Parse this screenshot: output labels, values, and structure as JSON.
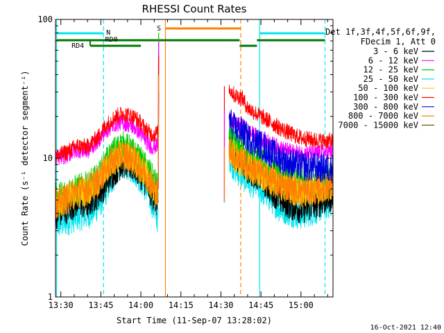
{
  "chart_data": {
    "type": "line",
    "title": "RHESSI Count Rates",
    "xlabel": "Start Time (11-Sep-07 13:28:02)",
    "ylabel": "Count Rate (s⁻¹ detector segment⁻¹)",
    "y_scale": "log",
    "ylim": [
      1,
      100
    ],
    "y_ticks": [
      "1",
      "10",
      "100"
    ],
    "x_range_minutes_of_day": [
      808,
      912
    ],
    "x_ticks": [
      "13:30",
      "13:45",
      "14:00",
      "14:15",
      "14:30",
      "14:45",
      "15:00"
    ],
    "x_tick_values_minutes": [
      810,
      825,
      840,
      855,
      870,
      885,
      900
    ],
    "legend_header": [
      "Det 1f,3f,4f,5f,6f,9f,",
      "FDecim 1, Att 0"
    ],
    "legend_position": "right",
    "timestamp": "16-Oct-2021 12:40",
    "series": [
      {
        "name": "3 - 6 keV",
        "color": "#000000",
        "anchors_x": [
          808,
          812,
          816,
          820,
          824,
          826,
          830,
          833,
          836,
          838,
          840,
          842,
          844,
          845.5,
          846.5,
          871,
          873,
          875,
          878,
          880,
          884,
          888,
          892,
          896,
          900,
          905,
          908,
          912
        ],
        "anchors_y": [
          3.9,
          4.3,
          4.8,
          4.6,
          5.6,
          6.2,
          8.0,
          9.2,
          8.8,
          8.5,
          7.6,
          6.6,
          5.6,
          5.0,
          4.3,
          null,
          13.0,
          10.5,
          9.6,
          8.2,
          7.5,
          6.2,
          5.1,
          4.6,
          4.3,
          4.6,
          4.9,
          5.3
        ]
      },
      {
        "name": "6 - 12 keV",
        "color": "#ff00ff",
        "anchors_x": [
          808,
          812,
          816,
          820,
          824,
          826,
          830,
          833,
          836,
          838,
          840,
          842,
          844,
          845.5,
          846.5,
          871,
          873,
          875,
          878,
          880,
          884,
          888,
          892,
          896,
          900,
          905,
          908,
          912
        ],
        "anchors_y": [
          10.0,
          10.4,
          11.5,
          11.2,
          13.4,
          15.0,
          17.6,
          18.2,
          17.2,
          16.4,
          15.0,
          13.2,
          12.0,
          12.2,
          12.5,
          null,
          20.0,
          17.5,
          17.0,
          15.5,
          14.2,
          13.0,
          11.8,
          11.2,
          10.8,
          10.8,
          11.0,
          11.2
        ]
      },
      {
        "name": "12 - 25 keV",
        "color": "#00cc00",
        "anchors_x": [
          808,
          812,
          816,
          820,
          824,
          826,
          830,
          833,
          836,
          838,
          840,
          842,
          844,
          845.5,
          846.5,
          871,
          873,
          875,
          878,
          880,
          884,
          888,
          892,
          896,
          900,
          905,
          908,
          912
        ],
        "anchors_y": [
          5.2,
          5.6,
          6.0,
          6.3,
          7.2,
          8.6,
          11.2,
          12.4,
          11.5,
          10.4,
          9.4,
          8.5,
          7.3,
          6.5,
          6.0,
          null,
          14.0,
          12.2,
          11.2,
          10.5,
          9.5,
          8.4,
          7.7,
          7.1,
          6.6,
          6.6,
          6.8,
          7.1
        ]
      },
      {
        "name": "25 - 50 keV",
        "color": "#00e5ee",
        "anchors_x": [
          808,
          812,
          816,
          820,
          824,
          826,
          830,
          833,
          836,
          838,
          840,
          842,
          844,
          845.5,
          846.5,
          871,
          873,
          875,
          878,
          880,
          884,
          888,
          892,
          896,
          900,
          905,
          908,
          912
        ],
        "anchors_y": [
          3.3,
          3.5,
          3.8,
          3.9,
          4.5,
          5.3,
          7.5,
          9.2,
          8.6,
          8.0,
          7.0,
          6.0,
          4.9,
          4.0,
          3.6,
          null,
          10.5,
          8.5,
          7.5,
          6.9,
          6.2,
          5.3,
          4.4,
          4.1,
          3.9,
          4.2,
          4.5,
          4.8
        ]
      },
      {
        "name": "50 - 100 keV",
        "color": "#ffcc00",
        "anchors_x": [
          808,
          812,
          816,
          820,
          824,
          826,
          830,
          833,
          836,
          838,
          840,
          842,
          844,
          845.5,
          846.5,
          871,
          873,
          875,
          878,
          880,
          884,
          888,
          892,
          896,
          900,
          905,
          908,
          912
        ],
        "anchors_y": [
          4.6,
          5.0,
          5.6,
          5.8,
          6.6,
          7.8,
          9.6,
          10.5,
          10.0,
          9.2,
          8.4,
          7.5,
          6.4,
          5.6,
          5.2,
          null,
          11.5,
          10.0,
          9.3,
          8.5,
          7.7,
          6.9,
          6.3,
          5.9,
          5.6,
          5.8,
          6.0,
          6.3
        ]
      },
      {
        "name": "100 - 300 keV",
        "color": "#ff0000",
        "anchors_x": [
          808,
          812,
          816,
          820,
          824,
          826,
          830,
          833,
          836,
          838,
          840,
          842,
          844,
          845.5,
          846.5,
          871,
          873,
          875,
          878,
          880,
          884,
          888,
          892,
          896,
          900,
          905,
          908,
          912
        ],
        "anchors_y": [
          10.3,
          11.0,
          12.2,
          12.1,
          14.2,
          16.4,
          19.6,
          21.0,
          20.3,
          19.5,
          17.8,
          16.0,
          14.8,
          15.0,
          15.2,
          null,
          32.0,
          28.5,
          27.0,
          23.0,
          20.5,
          18.5,
          16.5,
          15.0,
          14.0,
          13.5,
          13.3,
          13.3
        ]
      },
      {
        "name": "300 - 800 keV",
        "color": "#0000dd",
        "anchors_x": [
          808,
          812,
          816,
          820,
          824,
          826,
          830,
          833,
          836,
          838,
          840,
          842,
          844,
          845.5,
          846.5,
          871,
          873,
          875,
          878,
          880,
          884,
          888,
          892,
          896,
          900,
          905,
          908,
          912
        ],
        "anchors_y": [
          null,
          null,
          null,
          null,
          null,
          null,
          null,
          null,
          null,
          null,
          null,
          null,
          null,
          null,
          null,
          null,
          19.0,
          16.5,
          15.5,
          14.0,
          12.8,
          11.2,
          10.0,
          9.2,
          8.8,
          8.6,
          8.5,
          8.5
        ]
      },
      {
        "name": "800 - 7000 keV",
        "color": "#ff8000",
        "anchors_x": [
          808,
          812,
          816,
          820,
          824,
          826,
          830,
          833,
          836,
          838,
          840,
          842,
          844,
          845.5,
          846.5,
          871,
          873,
          875,
          878,
          880,
          884,
          888,
          892,
          896,
          900,
          905,
          908,
          912
        ],
        "anchors_y": [
          4.7,
          5.1,
          5.8,
          6.0,
          6.8,
          8.0,
          9.8,
          10.7,
          10.2,
          9.4,
          8.6,
          7.6,
          6.5,
          5.7,
          5.3,
          null,
          12.0,
          10.3,
          9.6,
          8.8,
          8.0,
          7.2,
          6.5,
          6.1,
          5.8,
          5.9,
          6.1,
          6.4
        ]
      },
      {
        "name": "7000 - 15000 keV",
        "color": "#6b5a00",
        "anchors_x": [
          808,
          812,
          816,
          820,
          824,
          826,
          830,
          833,
          836,
          838,
          840,
          842,
          844,
          845.5,
          846.5,
          871,
          873,
          875,
          878,
          880,
          884,
          888,
          892,
          896,
          900,
          905,
          908,
          912
        ],
        "anchors_y": [
          null,
          null,
          null,
          null,
          null,
          null,
          null,
          null,
          null,
          null,
          null,
          null,
          null,
          null,
          null,
          null,
          null,
          null,
          null,
          null,
          null,
          null,
          null,
          null,
          null,
          null,
          null,
          null
        ]
      }
    ],
    "spike_minutes": [
      846.5,
      871.3
    ],
    "vertical_markers": [
      {
        "x": 808.4,
        "color": "#00e5ee",
        "style": "solid"
      },
      {
        "x": 826.0,
        "color": "#00e5ee",
        "style": "dashed"
      },
      {
        "x": 849.2,
        "color": "#ff8000",
        "style": "solid"
      },
      {
        "x": 877.4,
        "color": "#ff8000",
        "style": "dashed"
      },
      {
        "x": 884.5,
        "color": "#00e5ee",
        "style": "solid"
      },
      {
        "x": 909.0,
        "color": "#00e5ee",
        "style": "dashed"
      }
    ],
    "annotations": [
      {
        "text": "N",
        "color": "#00e5ee",
        "x": 827.0
      },
      {
        "text": "RD0",
        "color": "#007700",
        "x": 826.6
      },
      {
        "text": "RD4",
        "color": "#007700",
        "x": 814.0
      },
      {
        "text": "S",
        "color": "#ff8000",
        "x": 846.0
      }
    ],
    "status_bars": {
      "night": [
        {
          "from": 808.4,
          "to": 826.0,
          "color": "#00e5ee"
        },
        {
          "from": 884.5,
          "to": 909.0,
          "color": "#00e5ee"
        }
      ],
      "saa": [
        {
          "from": 849.2,
          "to": 877.4,
          "color": "#ff8000"
        }
      ],
      "rd_bars_upper": [
        {
          "from": 808.4,
          "to": 877.0,
          "color": "#007700"
        },
        {
          "from": 877.0,
          "to": 883.5,
          "color": "#007700"
        },
        {
          "from": 883.5,
          "to": 909.0,
          "color": "#007700"
        }
      ],
      "rd_bars_lower": [
        {
          "from": 821.0,
          "to": 840.0,
          "color": "#007700"
        }
      ]
    }
  }
}
